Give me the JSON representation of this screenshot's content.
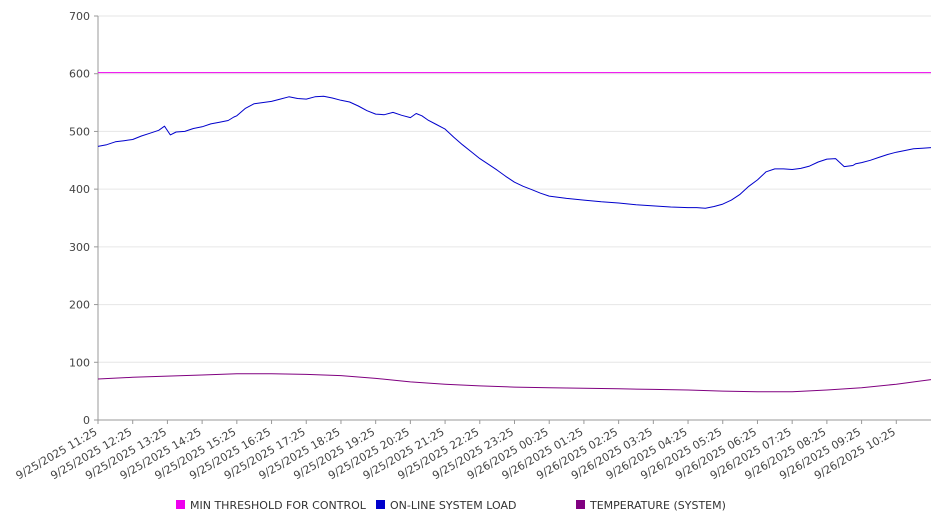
{
  "chart_data": {
    "type": "line",
    "title": "",
    "xlabel": "",
    "ylabel": "",
    "ylim": [
      0,
      700
    ],
    "yticks": [
      0,
      100,
      200,
      300,
      400,
      500,
      600,
      700
    ],
    "grid": "horizontal",
    "legend_position": "bottom",
    "x_tick_labels": [
      "9/25/2025 11:25",
      "9/25/2025 12:25",
      "9/25/2025 13:25",
      "9/25/2025 14:25",
      "9/25/2025 15:25",
      "9/25/2025 16:25",
      "9/25/2025 17:25",
      "9/25/2025 18:25",
      "9/25/2025 19:25",
      "9/25/2025 20:25",
      "9/25/2025 21:25",
      "9/25/2025 22:25",
      "9/25/2025 23:25",
      "9/26/2025 00:25",
      "9/26/2025 01:25",
      "9/26/2025 02:25",
      "9/26/2025 03:25",
      "9/26/2025 04:25",
      "9/26/2025 05:25",
      "9/26/2025 06:25",
      "9/26/2025 07:25",
      "9/26/2025 08:25",
      "9/26/2025 09:25",
      "9/26/2025 10:25"
    ],
    "x_start": "9/25/2025 11:25",
    "x_end": "9/26/2025 11:25",
    "series": [
      {
        "name": "MIN THRESHOLD FOR CONTROL",
        "color": "#ee00ee",
        "x": [
          "9/25/2025 11:25",
          "9/26/2025 11:25"
        ],
        "values": [
          602,
          602
        ]
      },
      {
        "name": "ON-LINE SYSTEM LOAD",
        "color": "#0000cc",
        "x": [
          "9/25/2025 11:25",
          "9/25/2025 11:40",
          "9/25/2025 11:55",
          "9/25/2025 12:10",
          "9/25/2025 12:25",
          "9/25/2025 12:40",
          "9/25/2025 12:55",
          "9/25/2025 13:10",
          "9/25/2025 13:20",
          "9/25/2025 13:30",
          "9/25/2025 13:40",
          "9/25/2025 13:55",
          "9/25/2025 14:10",
          "9/25/2025 14:25",
          "9/25/2025 14:40",
          "9/25/2025 14:55",
          "9/25/2025 15:10",
          "9/25/2025 15:20",
          "9/25/2025 15:25",
          "9/25/2025 15:40",
          "9/25/2025 15:55",
          "9/25/2025 16:25",
          "9/25/2025 16:40",
          "9/25/2025 16:55",
          "9/25/2025 17:10",
          "9/25/2025 17:25",
          "9/25/2025 17:40",
          "9/25/2025 17:55",
          "9/25/2025 18:10",
          "9/25/2025 18:25",
          "9/25/2025 18:40",
          "9/25/2025 18:55",
          "9/25/2025 19:10",
          "9/25/2025 19:25",
          "9/25/2025 19:40",
          "9/25/2025 19:55",
          "9/25/2025 20:10",
          "9/25/2025 20:25",
          "9/25/2025 20:35",
          "9/25/2025 20:45",
          "9/25/2025 20:55",
          "9/25/2025 21:10",
          "9/25/2025 21:25",
          "9/25/2025 21:40",
          "9/25/2025 21:55",
          "9/25/2025 22:10",
          "9/25/2025 22:25",
          "9/25/2025 22:40",
          "9/25/2025 22:55",
          "9/25/2025 23:10",
          "9/25/2025 23:25",
          "9/25/2025 23:40",
          "9/25/2025 23:55",
          "9/26/2025 00:10",
          "9/26/2025 00:25",
          "9/26/2025 00:55",
          "9/26/2025 01:25",
          "9/26/2025 01:55",
          "9/26/2025 02:25",
          "9/26/2025 02:55",
          "9/26/2025 03:25",
          "9/26/2025 03:55",
          "9/26/2025 04:25",
          "9/26/2025 04:40",
          "9/26/2025 04:55",
          "9/26/2025 05:10",
          "9/26/2025 05:25",
          "9/26/2025 05:40",
          "9/26/2025 05:55",
          "9/26/2025 06:10",
          "9/26/2025 06:25",
          "9/26/2025 06:40",
          "9/26/2025 06:55",
          "9/26/2025 07:10",
          "9/26/2025 07:25",
          "9/26/2025 07:40",
          "9/26/2025 07:55",
          "9/26/2025 08:10",
          "9/26/2025 08:25",
          "9/26/2025 08:40",
          "9/26/2025 08:55",
          "9/26/2025 09:10",
          "9/26/2025 09:15",
          "9/26/2025 09:25",
          "9/26/2025 09:40",
          "9/26/2025 09:55",
          "9/26/2025 10:10",
          "9/26/2025 10:25",
          "9/26/2025 10:40",
          "9/26/2025 10:55",
          "9/26/2025 11:10",
          "9/26/2025 11:25"
        ],
        "values": [
          474,
          477,
          482,
          484,
          486,
          492,
          497,
          502,
          509,
          494,
          499,
          500,
          505,
          508,
          513,
          516,
          519,
          525,
          527,
          540,
          548,
          552,
          556,
          560,
          557,
          556,
          560,
          561,
          558,
          554,
          551,
          544,
          536,
          530,
          529,
          533,
          528,
          524,
          531,
          527,
          520,
          512,
          504,
          490,
          477,
          465,
          453,
          443,
          433,
          422,
          412,
          405,
          399,
          393,
          388,
          384,
          381,
          378,
          376,
          373,
          371,
          369,
          368,
          368,
          367,
          370,
          374,
          381,
          391,
          405,
          416,
          430,
          435,
          435,
          434,
          436,
          440,
          447,
          452,
          453,
          439,
          441,
          444,
          446,
          450,
          455,
          460,
          464,
          467,
          470,
          471,
          472
        ]
      },
      {
        "name": "TEMPERATURE (SYSTEM)",
        "color": "#800080",
        "x": [
          "9/25/2025 11:25",
          "9/25/2025 12:25",
          "9/25/2025 13:25",
          "9/25/2025 14:25",
          "9/25/2025 15:25",
          "9/25/2025 16:25",
          "9/25/2025 17:25",
          "9/25/2025 18:25",
          "9/25/2025 19:25",
          "9/25/2025 20:25",
          "9/25/2025 21:25",
          "9/25/2025 22:25",
          "9/25/2025 23:25",
          "9/26/2025 00:25",
          "9/26/2025 01:25",
          "9/26/2025 02:25",
          "9/26/2025 03:25",
          "9/26/2025 04:25",
          "9/26/2025 05:25",
          "9/26/2025 06:25",
          "9/26/2025 07:25",
          "9/26/2025 08:25",
          "9/26/2025 09:25",
          "9/26/2025 10:25",
          "9/26/2025 11:25"
        ],
        "values": [
          71,
          74,
          76,
          78,
          80,
          80,
          79,
          77,
          72,
          66,
          62,
          59,
          57,
          56,
          55,
          54,
          53,
          52,
          50,
          49,
          49,
          52,
          56,
          62,
          70
        ]
      }
    ]
  }
}
